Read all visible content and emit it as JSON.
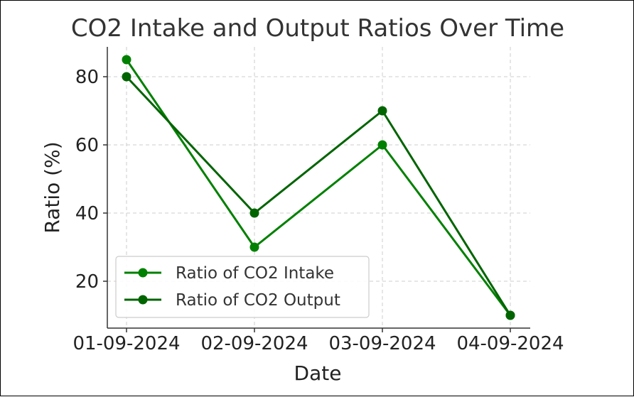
{
  "chart_data": {
    "type": "line",
    "title": "CO2 Intake and Output Ratios Over Time",
    "xlabel": "Date",
    "ylabel": "Ratio (%)",
    "categories": [
      "01-09-2024",
      "02-09-2024",
      "03-09-2024",
      "04-09-2024"
    ],
    "yticks": [
      20,
      40,
      60,
      80
    ],
    "ylim": [
      6.25,
      88.75
    ],
    "grid": true,
    "legend_position": "lower-left",
    "series": [
      {
        "name": "Ratio of CO2 Intake",
        "values": [
          85,
          30,
          60,
          10
        ],
        "color": "#008000"
      },
      {
        "name": "Ratio of CO2 Output",
        "values": [
          80,
          40,
          70,
          10
        ],
        "color": "#006400"
      }
    ]
  }
}
